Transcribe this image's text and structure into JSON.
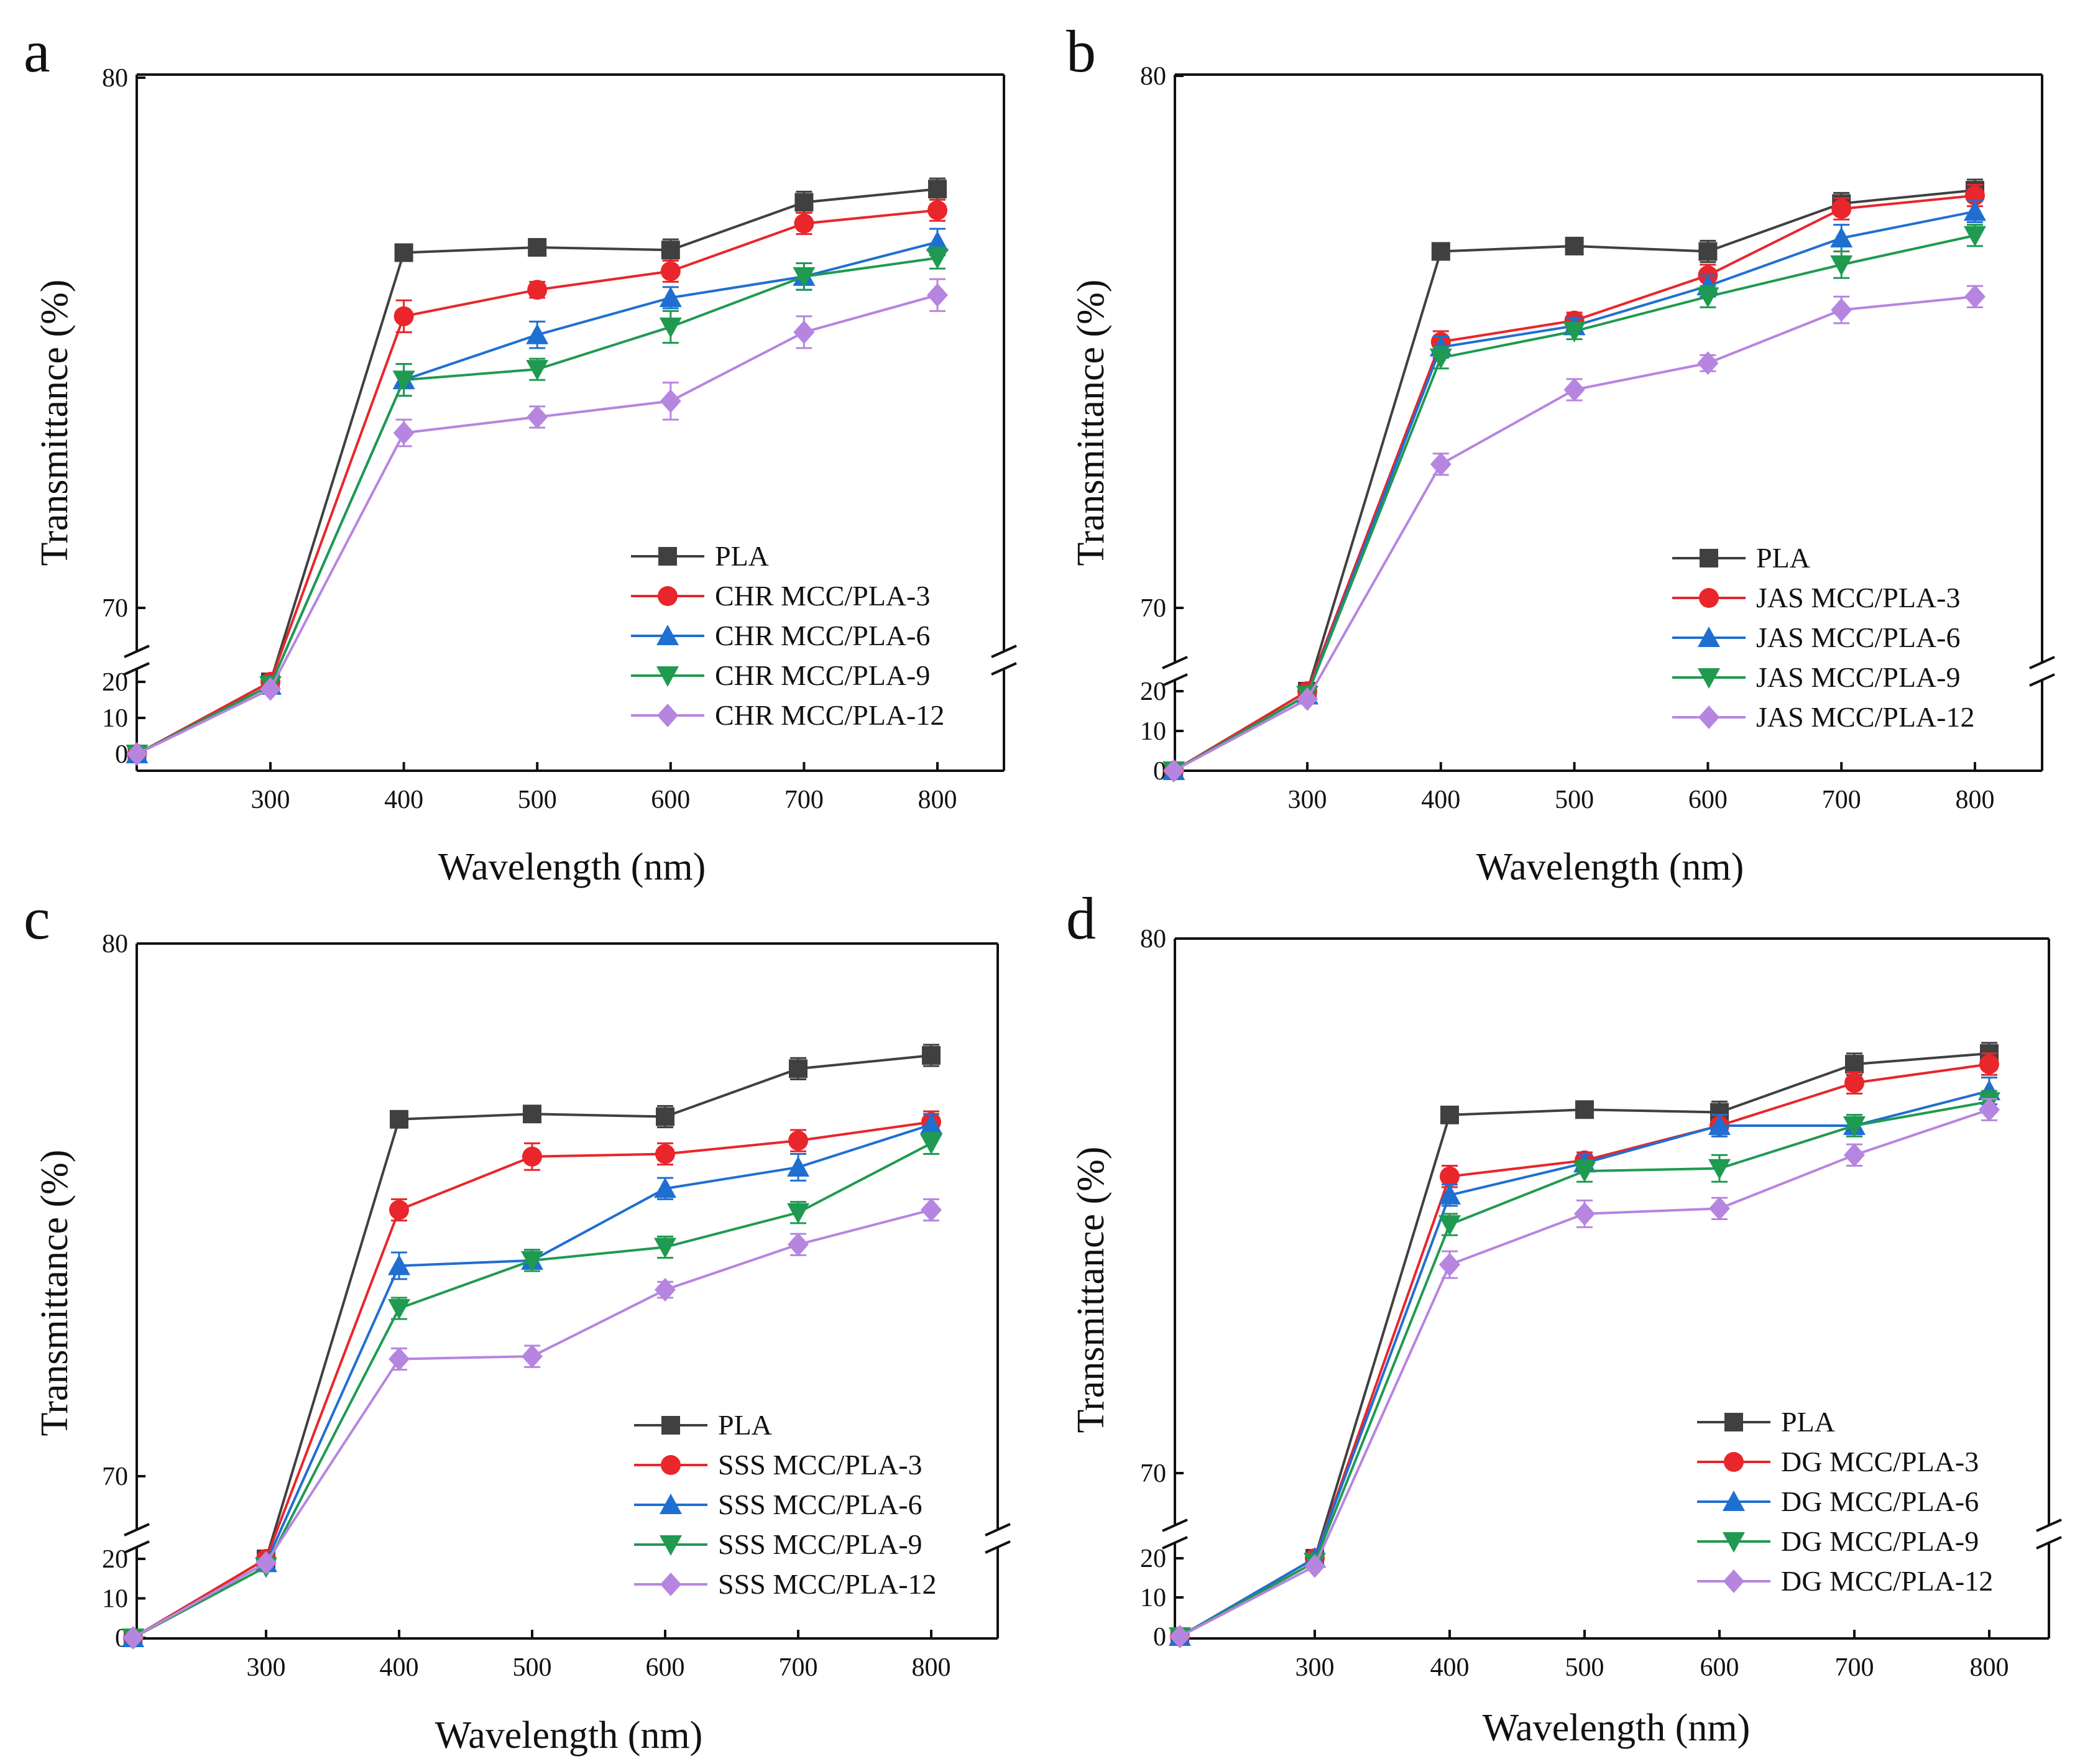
{
  "colors": {
    "PLA": "#404040",
    "MCC-3": "#e8262b",
    "MCC-6": "#1f6fd1",
    "MCC-9": "#1f9a50",
    "MCC-12": "#b685e0"
  },
  "chart_data": [
    {
      "type": "line",
      "panel": "a",
      "xlabel": "Wavelength (nm)",
      "ylabel": "Transmittance (%)",
      "x_ticks": [
        "300",
        "400",
        "500",
        "600",
        "700",
        "800"
      ],
      "y_ticks_upper": [
        "70",
        "80"
      ],
      "y_ticks_lower": [
        "0",
        "10",
        "20"
      ],
      "ylim_upper": [
        70,
        80
      ],
      "ylim_lower": [
        0,
        22
      ],
      "x": [
        200,
        300,
        400,
        500,
        600,
        700,
        800
      ],
      "series": [
        {
          "name": "PLA",
          "marker": "square",
          "values": [
            0,
            20,
            76.7,
            76.8,
            76.75,
            77.65,
            77.9
          ],
          "errors": [
            0,
            0,
            0.15,
            0.15,
            0.2,
            0.2,
            0.2
          ]
        },
        {
          "name": "CHR MCC/PLA-3",
          "marker": "circle",
          "values": [
            0,
            20,
            75.5,
            76.0,
            76.35,
            77.25,
            77.5
          ],
          "errors": [
            0,
            0,
            0.3,
            0.15,
            0.2,
            0.2,
            0.2
          ]
        },
        {
          "name": "CHR MCC/PLA-6",
          "marker": "triangle-up",
          "values": [
            0,
            19,
            74.3,
            75.15,
            75.85,
            76.25,
            76.9
          ],
          "errors": [
            0,
            0,
            0.3,
            0.25,
            0.2,
            0.25,
            0.25
          ]
        },
        {
          "name": "CHR MCC/PLA-9",
          "marker": "triangle-down",
          "values": [
            0,
            19,
            74.3,
            74.5,
            75.3,
            76.25,
            76.6
          ],
          "errors": [
            0,
            0,
            0.3,
            0.2,
            0.3,
            0.25,
            0.2
          ]
        },
        {
          "name": "CHR MCC/PLA-12",
          "marker": "diamond",
          "values": [
            0,
            18,
            73.3,
            73.6,
            73.9,
            75.2,
            75.9
          ],
          "errors": [
            0,
            0,
            0.25,
            0.2,
            0.35,
            0.3,
            0.3
          ]
        }
      ]
    },
    {
      "type": "line",
      "panel": "b",
      "xlabel": "Wavelength (nm)",
      "ylabel": "Transmittance (%)",
      "x_ticks": [
        "300",
        "400",
        "500",
        "600",
        "700",
        "800"
      ],
      "y_ticks_upper": [
        "70",
        "80"
      ],
      "y_ticks_lower": [
        "0",
        "10",
        "20"
      ],
      "ylim_upper": [
        70,
        80
      ],
      "ylim_lower": [
        0,
        22
      ],
      "x": [
        200,
        300,
        400,
        500,
        600,
        700,
        800
      ],
      "series": [
        {
          "name": "PLA",
          "marker": "square",
          "values": [
            0,
            20,
            76.7,
            76.8,
            76.7,
            77.6,
            77.85
          ],
          "errors": [
            0,
            0,
            0.15,
            0.15,
            0.2,
            0.2,
            0.2
          ]
        },
        {
          "name": "JAS MCC/PLA-3",
          "marker": "circle",
          "values": [
            0,
            20,
            75.0,
            75.4,
            76.25,
            77.5,
            77.75
          ],
          "errors": [
            0,
            0,
            0.2,
            0.15,
            0.2,
            0.2,
            0.2
          ]
        },
        {
          "name": "JAS MCC/PLA-6",
          "marker": "triangle-up",
          "values": [
            0,
            19,
            74.9,
            75.3,
            76.05,
            76.95,
            77.45
          ],
          "errors": [
            0,
            0,
            0.2,
            0.15,
            0.2,
            0.25,
            0.2
          ]
        },
        {
          "name": "JAS MCC/PLA-9",
          "marker": "triangle-down",
          "values": [
            0,
            19,
            74.7,
            75.2,
            75.85,
            76.45,
            77.0
          ],
          "errors": [
            0,
            0,
            0.2,
            0.15,
            0.2,
            0.25,
            0.2
          ]
        },
        {
          "name": "JAS MCC/PLA-12",
          "marker": "diamond",
          "values": [
            0,
            18,
            72.7,
            74.1,
            74.6,
            75.6,
            75.85
          ],
          "errors": [
            0,
            0,
            0.2,
            0.2,
            0.15,
            0.25,
            0.2
          ]
        }
      ]
    },
    {
      "type": "line",
      "panel": "c",
      "xlabel": "Wavelength (nm)",
      "ylabel": "Transmittance (%)",
      "x_ticks": [
        "300",
        "400",
        "500",
        "600",
        "700",
        "800"
      ],
      "y_ticks_upper": [
        "70",
        "80"
      ],
      "y_ticks_lower": [
        "0",
        "10",
        "20"
      ],
      "ylim_upper": [
        70,
        80
      ],
      "ylim_lower": [
        0,
        22
      ],
      "x": [
        200,
        300,
        400,
        500,
        600,
        700,
        800
      ],
      "series": [
        {
          "name": "PLA",
          "marker": "square",
          "values": [
            0,
            20,
            76.7,
            76.8,
            76.75,
            77.65,
            77.9
          ],
          "errors": [
            0,
            0,
            0.15,
            0.15,
            0.2,
            0.2,
            0.2
          ]
        },
        {
          "name": "SSS MCC/PLA-3",
          "marker": "circle",
          "values": [
            0,
            20,
            75.0,
            76.0,
            76.05,
            76.3,
            76.65
          ],
          "errors": [
            0,
            0,
            0.2,
            0.25,
            0.2,
            0.2,
            0.2
          ]
        },
        {
          "name": "SSS MCC/PLA-6",
          "marker": "triangle-up",
          "values": [
            0,
            19,
            73.95,
            74.05,
            75.4,
            75.8,
            76.6
          ],
          "errors": [
            0,
            0,
            0.25,
            0.2,
            0.2,
            0.25,
            0.2
          ]
        },
        {
          "name": "SSS MCC/PLA-9",
          "marker": "triangle-down",
          "values": [
            0,
            18,
            73.15,
            74.05,
            74.3,
            74.95,
            76.25
          ],
          "errors": [
            0,
            0,
            0.2,
            0.2,
            0.2,
            0.2,
            0.2
          ]
        },
        {
          "name": "SSS MCC/PLA-12",
          "marker": "diamond",
          "values": [
            0,
            19,
            72.2,
            72.25,
            73.5,
            74.35,
            75.0
          ],
          "errors": [
            0,
            0,
            0.2,
            0.2,
            0.15,
            0.2,
            0.2
          ]
        }
      ]
    },
    {
      "type": "line",
      "panel": "d",
      "xlabel": "Wavelength (nm)",
      "ylabel": "Transmittance (%)",
      "x_ticks": [
        "300",
        "400",
        "500",
        "600",
        "700",
        "800"
      ],
      "y_ticks_upper": [
        "70",
        "80"
      ],
      "y_ticks_lower": [
        "0",
        "10",
        "20"
      ],
      "ylim_upper": [
        70,
        80
      ],
      "ylim_lower": [
        0,
        22
      ],
      "x": [
        200,
        300,
        400,
        500,
        600,
        700,
        800
      ],
      "series": [
        {
          "name": "PLA",
          "marker": "square",
          "values": [
            0,
            20,
            76.7,
            76.8,
            76.75,
            77.65,
            77.85
          ],
          "errors": [
            0,
            0,
            0.15,
            0.15,
            0.2,
            0.2,
            0.2
          ]
        },
        {
          "name": "DG MCC/PLA-3",
          "marker": "circle",
          "values": [
            0,
            20,
            75.55,
            75.85,
            76.5,
            77.3,
            77.65
          ],
          "errors": [
            0,
            0,
            0.2,
            0.15,
            0.2,
            0.2,
            0.2
          ]
        },
        {
          "name": "DG MCC/PLA-6",
          "marker": "triangle-up",
          "values": [
            0,
            20,
            75.2,
            75.8,
            76.5,
            76.5,
            77.15
          ],
          "errors": [
            0,
            0,
            0.2,
            0.15,
            0.2,
            0.2,
            0.25
          ]
        },
        {
          "name": "DG MCC/PLA-9",
          "marker": "triangle-down",
          "values": [
            0,
            19,
            74.65,
            75.65,
            75.7,
            76.5,
            76.95
          ],
          "errors": [
            0,
            0,
            0.2,
            0.2,
            0.25,
            0.2,
            0.2
          ]
        },
        {
          "name": "DG MCC/PLA-12",
          "marker": "diamond",
          "values": [
            0,
            18,
            73.9,
            74.85,
            74.95,
            75.95,
            76.8
          ],
          "errors": [
            0,
            0,
            0.25,
            0.25,
            0.2,
            0.2,
            0.2
          ]
        }
      ]
    }
  ]
}
